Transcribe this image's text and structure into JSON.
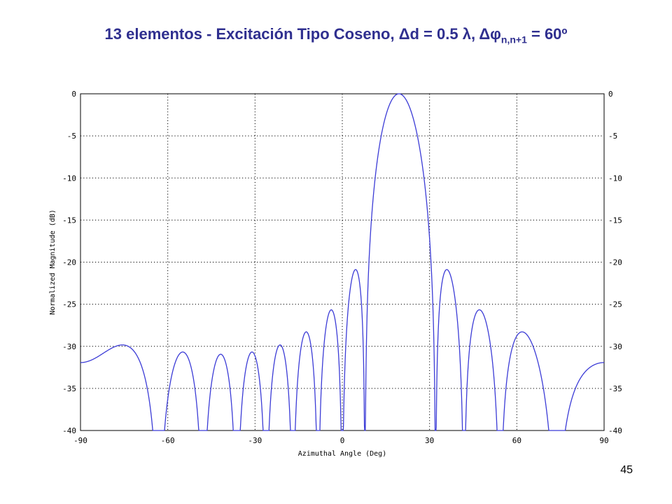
{
  "slide": {
    "title_prefix": "13 elementos - Excitación Tipo Coseno, ",
    "title_delta_d": "Δd = 0.5 λ, Δφ",
    "title_sub": "n,n+1",
    "title_suffix": " = 60º",
    "page_number": "45"
  },
  "chart_data": {
    "type": "line",
    "title": "13 elementos - Excitación Tipo Coseno, Δd = 0.5 λ, Δφn,n+1 = 60º",
    "xlabel": "Azimuthal Angle (Deg)",
    "ylabel": "Normalized Magnitude (dB)",
    "xlim": [
      -90,
      90
    ],
    "ylim": [
      -40,
      0
    ],
    "x_ticks": [
      "-90",
      "-60",
      "-30",
      "0",
      "30",
      "60",
      "90"
    ],
    "y_ticks": [
      "0",
      "-5",
      "-10",
      "-15",
      "-20",
      "-25",
      "-30",
      "-35",
      "-40"
    ],
    "grid": true,
    "line_color": "#3b3bd6",
    "array": {
      "elements": 13,
      "spacing_wavelengths": 0.5,
      "progressive_phase_deg": 60,
      "taper": "cosine"
    }
  }
}
